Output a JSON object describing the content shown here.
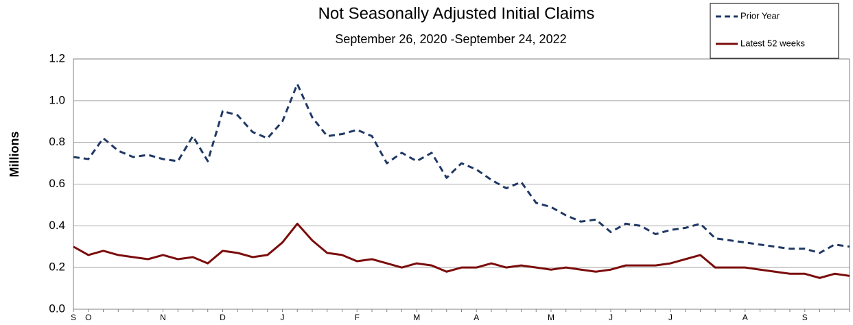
{
  "chart_data": {
    "type": "line",
    "title": "Not Seasonally Adjusted Initial Claims",
    "subtitle": "September 26, 2020 -September 24, 2022",
    "y_label": "Millions",
    "categories": [
      "S",
      "O",
      null,
      null,
      null,
      null,
      "N",
      null,
      null,
      null,
      "D",
      null,
      null,
      null,
      "J",
      null,
      null,
      null,
      null,
      "F",
      null,
      null,
      null,
      "M",
      null,
      null,
      null,
      "A",
      null,
      null,
      null,
      null,
      "M",
      null,
      null,
      null,
      "J",
      null,
      null,
      null,
      "J",
      null,
      null,
      null,
      null,
      "A",
      null,
      null,
      null,
      "S",
      null,
      null,
      null
    ],
    "series": [
      {
        "name": "Prior Year",
        "color": "#1f3864",
        "dashed": true,
        "values": [
          0.73,
          0.72,
          0.82,
          0.76,
          0.73,
          0.74,
          0.72,
          0.71,
          0.83,
          0.71,
          0.95,
          0.93,
          0.85,
          0.82,
          0.9,
          1.08,
          0.92,
          0.83,
          0.84,
          0.86,
          0.83,
          0.7,
          0.75,
          0.71,
          0.75,
          0.63,
          0.7,
          0.67,
          0.62,
          0.58,
          0.61,
          0.51,
          0.49,
          0.45,
          0.42,
          0.43,
          0.37,
          0.41,
          0.4,
          0.36,
          0.38,
          0.39,
          0.41,
          0.34,
          0.33,
          0.32,
          0.31,
          0.3,
          0.29,
          0.29,
          0.27,
          0.31,
          0.3
        ]
      },
      {
        "name": "Latest 52 weeks",
        "color": "#7b0c0c",
        "dashed": false,
        "values": [
          0.3,
          0.26,
          0.28,
          0.26,
          0.25,
          0.24,
          0.26,
          0.24,
          0.25,
          0.22,
          0.28,
          0.27,
          0.25,
          0.26,
          0.32,
          0.41,
          0.33,
          0.27,
          0.26,
          0.23,
          0.24,
          0.22,
          0.2,
          0.22,
          0.21,
          0.18,
          0.2,
          0.2,
          0.22,
          0.2,
          0.21,
          0.2,
          0.19,
          0.2,
          0.19,
          0.18,
          0.19,
          0.21,
          0.21,
          0.21,
          0.22,
          0.24,
          0.26,
          0.2,
          0.2,
          0.2,
          0.19,
          0.18,
          0.17,
          0.17,
          0.15,
          0.17,
          0.16
        ]
      }
    ],
    "ylim": [
      0,
      1.2
    ],
    "yticks": [
      {
        "value": 0,
        "label": "0.0"
      },
      0.2,
      0.4,
      0.6,
      0.8,
      {
        "value": 1,
        "label": "1.0"
      },
      1.2
    ],
    "grid": true,
    "legend": "top-right"
  }
}
